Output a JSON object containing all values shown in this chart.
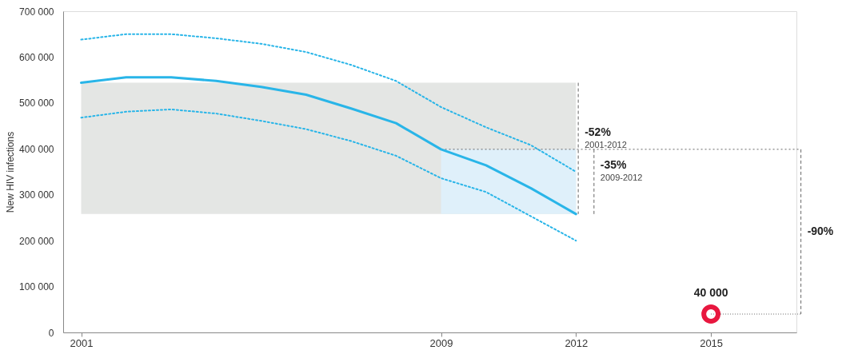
{
  "chart_data": {
    "type": "line",
    "ylabel": "New HIV infections",
    "x": [
      2001,
      2002,
      2003,
      2004,
      2005,
      2006,
      2007,
      2008,
      2009,
      2010,
      2011,
      2012
    ],
    "series": [
      {
        "color": "#29b5e8",
        "line_style": "solid",
        "values": [
          544000,
          556000,
          556000,
          548000,
          535000,
          518000,
          488000,
          456000,
          399000,
          364000,
          314000,
          258000
        ]
      },
      {
        "color": "#29b5e8",
        "line_style": "dotted",
        "values": [
          638000,
          650000,
          650000,
          641000,
          629000,
          611000,
          583000,
          548000,
          491000,
          447000,
          408000,
          350000
        ]
      },
      {
        "color": "#29b5e8",
        "line_style": "dotted",
        "values": [
          468000,
          481000,
          486000,
          477000,
          461000,
          443000,
          417000,
          385000,
          336000,
          306000,
          253000,
          200000
        ]
      },
      {
        "type": "scatter",
        "x": [
          2015
        ],
        "color": "#e8173f",
        "marker": "circle",
        "values": [
          40000
        ],
        "value_labels": [
          "40 000"
        ]
      }
    ],
    "bands": [
      {
        "axis": "y",
        "from": 258000,
        "to": 544000,
        "color": "#e4e6e4"
      },
      {
        "axis": "x",
        "from": 2009,
        "to": 2012,
        "color": "#dff0fa"
      }
    ],
    "annotations": [
      "-52%",
      "2001-2012",
      "-35%",
      "2009-2012",
      "-90%"
    ],
    "ref_lines": [
      {
        "axis": "y",
        "value": 399000,
        "color": "#666666",
        "line_style": "dotted"
      }
    ],
    "xlim": [
      2000.6,
      2016.9
    ],
    "xticks": [
      2001,
      2009,
      2012,
      2015
    ],
    "ylim": [
      0,
      700000
    ],
    "yticks": [
      0,
      {
        "value": 100000,
        "label": "100 000"
      },
      {
        "value": 200000,
        "label": "200 000"
      },
      {
        "value": 300000,
        "label": "300 000"
      },
      {
        "value": 400000,
        "label": "400 000"
      },
      {
        "value": 500000,
        "label": "500 000"
      },
      {
        "value": 600000,
        "label": "600 000"
      },
      {
        "value": 700000,
        "label": "700 000"
      }
    ],
    "grid": false,
    "marker": "none"
  }
}
